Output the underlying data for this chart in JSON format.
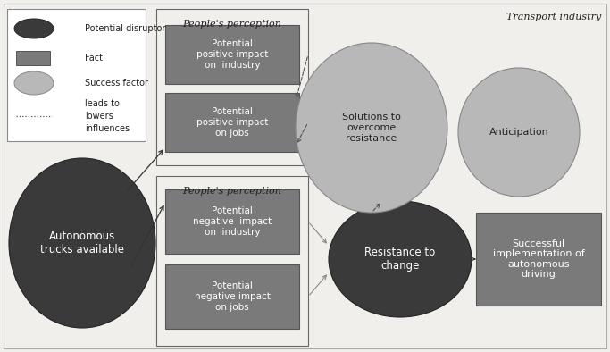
{
  "bg_color": "#f0efeb",
  "dark_ellipse_color": "#3a3a3a",
  "medium_gray_rect": "#7a7a7a",
  "light_gray_ellipse": "#b8b8b8",
  "white_text": "#ffffff",
  "dark_text": "#222222",
  "transport_label": "Transport industry",
  "autonomous_text": "Autonomous\ntrucks available",
  "resistance_text": "Resistance to\nchange",
  "solutions_text": "Solutions to\novercome\nresistance",
  "anticipation_text": "Anticipation",
  "successful_text": "Successful\nimplementation of\nautonomous\ndriving",
  "pos_industry_text": "Potential\npositive impact\non  industry",
  "pos_jobs_text": "Potential\npositive impact\non jobs",
  "neg_industry_text": "Potential\nnegative  impact\non  industry",
  "neg_jobs_text": "Potential\nnegative impact\non jobs",
  "perception_label": "People's perception",
  "legend_labels": [
    "Potential disruptor",
    "Fact",
    "Success factor",
    "leads to",
    "lowers",
    "influences"
  ]
}
